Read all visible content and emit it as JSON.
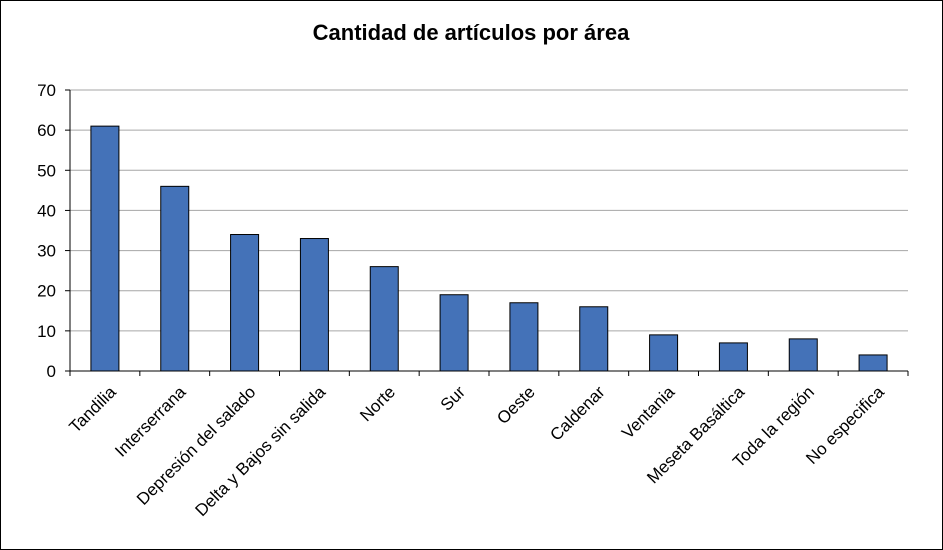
{
  "chart_data": {
    "type": "bar",
    "title": "Cantidad de artículos por área",
    "xlabel": "",
    "ylabel": "",
    "categories": [
      "Tandilia",
      "Interserrana",
      "Depresión del salado",
      "Delta y Bajos sin salida",
      "Norte",
      "Sur",
      "Oeste",
      "Caldenar",
      "Ventania",
      "Meseta Basáltica",
      "Toda la región",
      "No especifica"
    ],
    "values": [
      61,
      46,
      34,
      33,
      26,
      19,
      17,
      16,
      9,
      7,
      8,
      4
    ],
    "ylim": [
      0,
      70
    ],
    "yticks": [
      0,
      10,
      20,
      30,
      40,
      50,
      60,
      70
    ],
    "grid": true,
    "legend": "none",
    "colors": {
      "bar": "#4472b8",
      "bar_border": "#000000",
      "grid": "#a6a6a6"
    }
  }
}
